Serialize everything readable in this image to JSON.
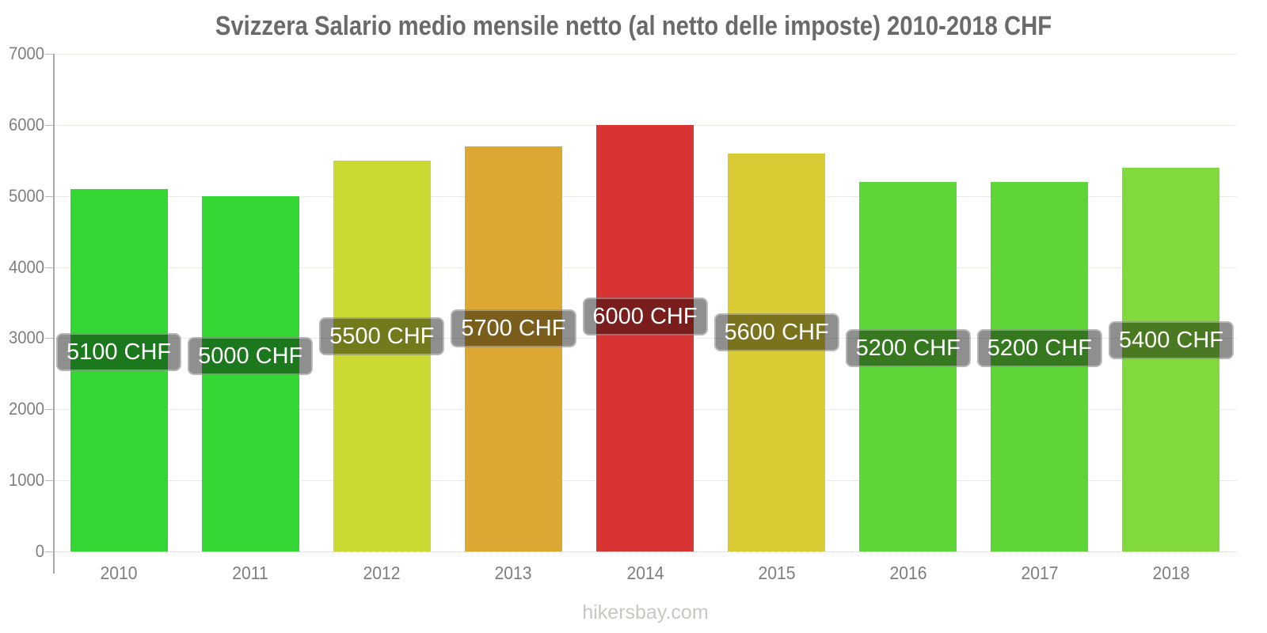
{
  "title": "Svizzera Salario medio mensile netto (al netto delle imposte) 2010-2018 CHF",
  "watermark": "hikersbay.com",
  "chart_data": {
    "type": "bar",
    "title": "Svizzera Salario medio mensile netto (al netto delle imposte) 2010-2018 CHF",
    "categories": [
      "2010",
      "2011",
      "2012",
      "2013",
      "2014",
      "2015",
      "2016",
      "2017",
      "2018"
    ],
    "values": [
      5100,
      5000,
      5500,
      5700,
      6000,
      5600,
      5200,
      5200,
      5400
    ],
    "unit": "CHF",
    "value_labels": [
      "5100 CHF",
      "5000 CHF",
      "5500 CHF",
      "5700 CHF",
      "6000 CHF",
      "5600 CHF",
      "5200 CHF",
      "5200 CHF",
      "5400 CHF"
    ],
    "bar_colors": [
      "#33d633",
      "#33d633",
      "#ccd933",
      "#dca733",
      "#d93434",
      "#d9cb33",
      "#5fd638",
      "#5fd638",
      "#82d93d"
    ],
    "xlabel": "",
    "ylabel": "",
    "ylim": [
      0,
      7000
    ],
    "yticks": [
      0,
      1000,
      2000,
      3000,
      4000,
      5000,
      6000,
      7000
    ],
    "grid": "horizontal",
    "legend": "none"
  },
  "colors": {
    "title_text": "#6a6a6a",
    "axis_line": "#a8a8a8",
    "grid_line": "#ecebe2",
    "tick_text": "#7f7f7f",
    "value_label_bg": "rgba(0,0,0,0.44)",
    "value_label_text": "#ffffff",
    "watermark_text": "#c8c8c0",
    "background": "#ffffff"
  }
}
